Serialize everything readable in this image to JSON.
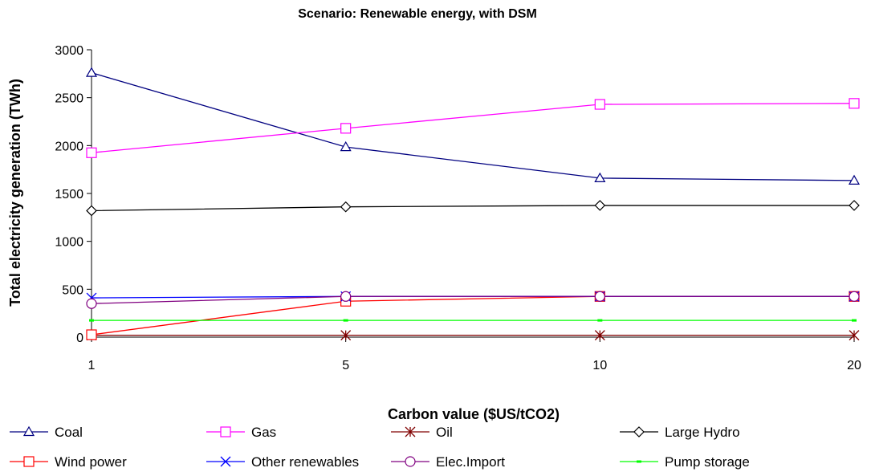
{
  "chart_data": {
    "type": "line",
    "title": "Scenario: Renewable energy, with DSM",
    "xlabel": "Carbon value ($US/tCO2)",
    "ylabel": "Total electricity generation (TWh)",
    "categories": [
      "1",
      "5",
      "10",
      "20"
    ],
    "ylim": [
      0,
      3000
    ],
    "yticks": [
      0,
      500,
      1000,
      1500,
      2000,
      2500,
      3000
    ],
    "grid": false,
    "legend_position": "bottom",
    "series": [
      {
        "name": "Coal",
        "values": [
          2760,
          1985,
          1660,
          1635
        ],
        "color": "#000080",
        "marker": "triangle"
      },
      {
        "name": "Gas",
        "values": [
          1925,
          2180,
          2430,
          2440
        ],
        "color": "#ff00ff",
        "marker": "square"
      },
      {
        "name": "Oil",
        "values": [
          20,
          20,
          20,
          20
        ],
        "color": "#800000",
        "marker": "star"
      },
      {
        "name": "Large Hydro",
        "values": [
          1320,
          1360,
          1375,
          1375
        ],
        "color": "#000000",
        "marker": "diamond"
      },
      {
        "name": "Wind power",
        "values": [
          25,
          375,
          425,
          425
        ],
        "color": "#ff0000",
        "marker": "square"
      },
      {
        "name": "Other renewables",
        "values": [
          410,
          425,
          425,
          425
        ],
        "color": "#0000ff",
        "marker": "x"
      },
      {
        "name": "Elec.Import",
        "values": [
          350,
          425,
          425,
          425
        ],
        "color": "#800080",
        "marker": "circle"
      },
      {
        "name": "Pump storage",
        "values": [
          175,
          175,
          175,
          175
        ],
        "color": "#00ff00",
        "marker": "dash"
      }
    ]
  }
}
